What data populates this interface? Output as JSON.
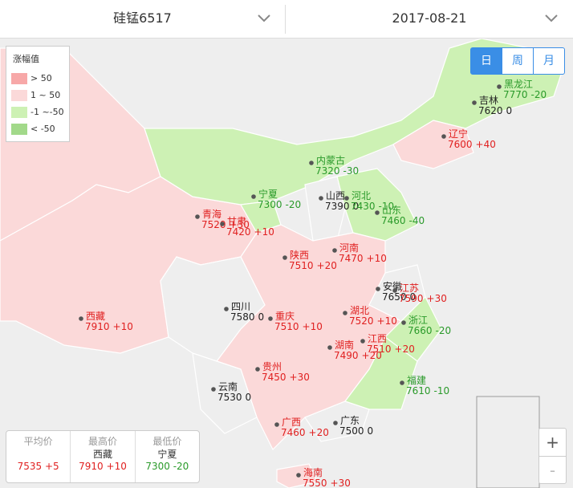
{
  "header": {
    "product": "硅锰6517",
    "date": "2017-08-21"
  },
  "period_tabs": [
    "日",
    "周",
    "月"
  ],
  "legend": {
    "title": "涨幅值",
    "items": [
      {
        "label": "> 50",
        "color": "#f7a8a8"
      },
      {
        "label": "1 ~ 50",
        "color": "#fbd9d9"
      },
      {
        "label": "-1 ~-50",
        "color": "#cdf1b4"
      },
      {
        "label": "< -50",
        "color": "#a2d98a"
      }
    ]
  },
  "provinces": [
    {
      "name": "黑龙江",
      "price": 7770,
      "change": "-20"
    },
    {
      "name": "吉林",
      "price": 7620,
      "change": "0"
    },
    {
      "name": "辽宁",
      "price": 7600,
      "change": "+40"
    },
    {
      "name": "内蒙古",
      "price": 7320,
      "change": "-30"
    },
    {
      "name": "宁夏",
      "price": 7300,
      "change": "-20"
    },
    {
      "name": "山西",
      "price": 7390,
      "change": "0"
    },
    {
      "name": "河北",
      "price": 7430,
      "change": "-10"
    },
    {
      "name": "山东",
      "price": 7460,
      "change": "-40"
    },
    {
      "name": "青海",
      "price": 7520,
      "change": "+30"
    },
    {
      "name": "甘肃",
      "price": 7420,
      "change": "+10"
    },
    {
      "name": "陕西",
      "price": 7510,
      "change": "+20"
    },
    {
      "name": "河南",
      "price": 7470,
      "change": "+10"
    },
    {
      "name": "安徽",
      "price": 7650,
      "change": "0"
    },
    {
      "name": "江苏",
      "price": 7590,
      "change": "+30"
    },
    {
      "name": "四川",
      "price": 7580,
      "change": "0"
    },
    {
      "name": "西藏",
      "price": 7910,
      "change": "+10"
    },
    {
      "name": "重庆",
      "price": 7510,
      "change": "+10"
    },
    {
      "name": "湖北",
      "price": 7520,
      "change": "+10"
    },
    {
      "name": "浙江",
      "price": 7660,
      "change": "-20"
    },
    {
      "name": "湖南",
      "price": 7490,
      "change": "+20"
    },
    {
      "name": "江西",
      "price": 7510,
      "change": "+20"
    },
    {
      "name": "贵州",
      "price": 7450,
      "change": "+30"
    },
    {
      "name": "云南",
      "price": 7530,
      "change": "0"
    },
    {
      "name": "福建",
      "price": 7610,
      "change": "-10"
    },
    {
      "name": "广西",
      "price": 7460,
      "change": "+20"
    },
    {
      "name": "广东",
      "price": 7500,
      "change": "0"
    },
    {
      "name": "海南",
      "price": 7550,
      "change": "+30"
    }
  ],
  "summary": {
    "average": {
      "label": "平均价",
      "price": 7535,
      "change": "+5"
    },
    "highest": {
      "label": "最高价",
      "province": "西藏",
      "price": 7910,
      "change": "+10"
    },
    "lowest": {
      "label": "最低价",
      "province": "宁夏",
      "price": 7300,
      "change": "-20"
    }
  },
  "zoom": [
    "+",
    "-"
  ]
}
